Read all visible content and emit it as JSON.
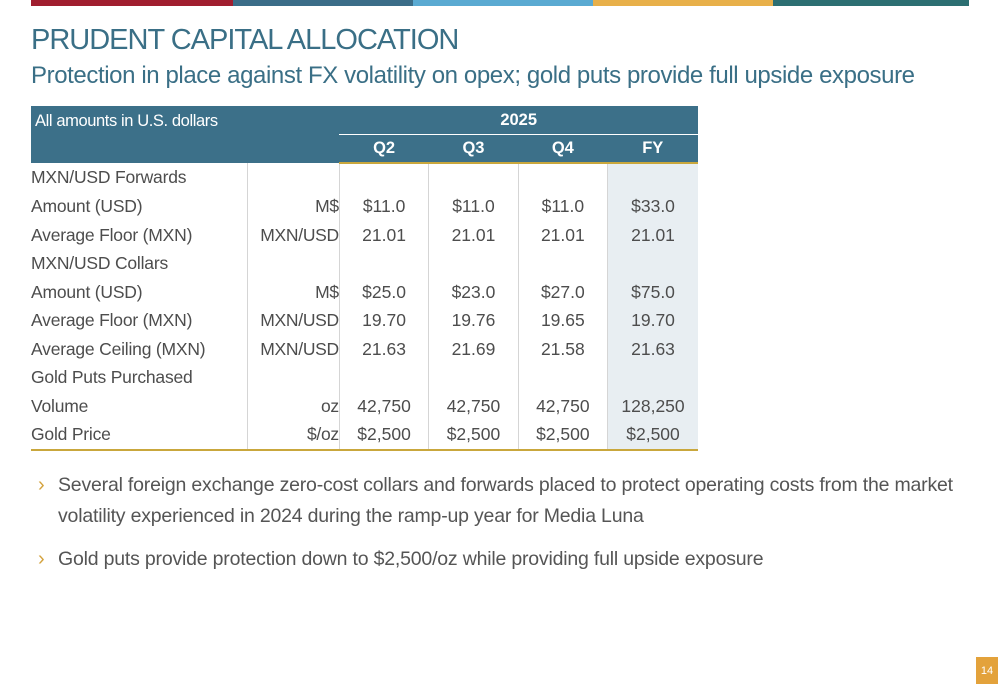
{
  "colors": {
    "top_bar": [
      "#a01e2f",
      "#3b6d88",
      "#5aaad2",
      "#e8b04a",
      "#2c6f72"
    ],
    "title": "#3a6f86",
    "header_bg": "#3c7089",
    "gold_accent": "#c9a73c",
    "fy_column_bg": "#e8eef2",
    "bullet_arrow": "#d4a33e",
    "page_number_bg": "#e3a23b"
  },
  "title": "PRUDENT CAPITAL ALLOCATION",
  "subtitle": "Protection in place against FX volatility on opex; gold puts provide full upside exposure",
  "table": {
    "caption": "All amounts in U.S. dollars",
    "year": "2025",
    "columns": [
      "Q2",
      "Q3",
      "Q4",
      "FY"
    ],
    "sections": [
      {
        "name": "MXN/USD Forwards",
        "rows": [
          {
            "label": "Amount (USD)",
            "unit": "M$",
            "values": [
              "$11.0",
              "$11.0",
              "$11.0",
              "$33.0"
            ]
          },
          {
            "label": "Average Floor (MXN)",
            "unit": "MXN/USD",
            "values": [
              "21.01",
              "21.01",
              "21.01",
              "21.01"
            ]
          }
        ]
      },
      {
        "name": "MXN/USD Collars",
        "rows": [
          {
            "label": "Amount (USD)",
            "unit": "M$",
            "values": [
              "$25.0",
              "$23.0",
              "$27.0",
              "$75.0"
            ]
          },
          {
            "label": "Average Floor (MXN)",
            "unit": "MXN/USD",
            "values": [
              "19.70",
              "19.76",
              "19.65",
              "19.70"
            ]
          },
          {
            "label": "Average Ceiling (MXN)",
            "unit": "MXN/USD",
            "values": [
              "21.63",
              "21.69",
              "21.58",
              "21.63"
            ]
          }
        ]
      },
      {
        "name": "Gold Puts Purchased",
        "rows": [
          {
            "label": "Volume",
            "unit": "oz",
            "values": [
              "42,750",
              "42,750",
              "42,750",
              "128,250"
            ]
          },
          {
            "label": "Gold Price",
            "unit": "$/oz",
            "values": [
              "$2,500",
              "$2,500",
              "$2,500",
              "$2,500"
            ]
          }
        ]
      }
    ]
  },
  "bullets": [
    "Several foreign exchange zero-cost collars and forwards placed to protect operating costs from the market volatility experienced in 2024 during the ramp-up year for Media Luna",
    "Gold puts provide protection down to $2,500/oz while providing full upside exposure"
  ],
  "bullet_icon": "chevron-right-icon",
  "page_number": "14"
}
